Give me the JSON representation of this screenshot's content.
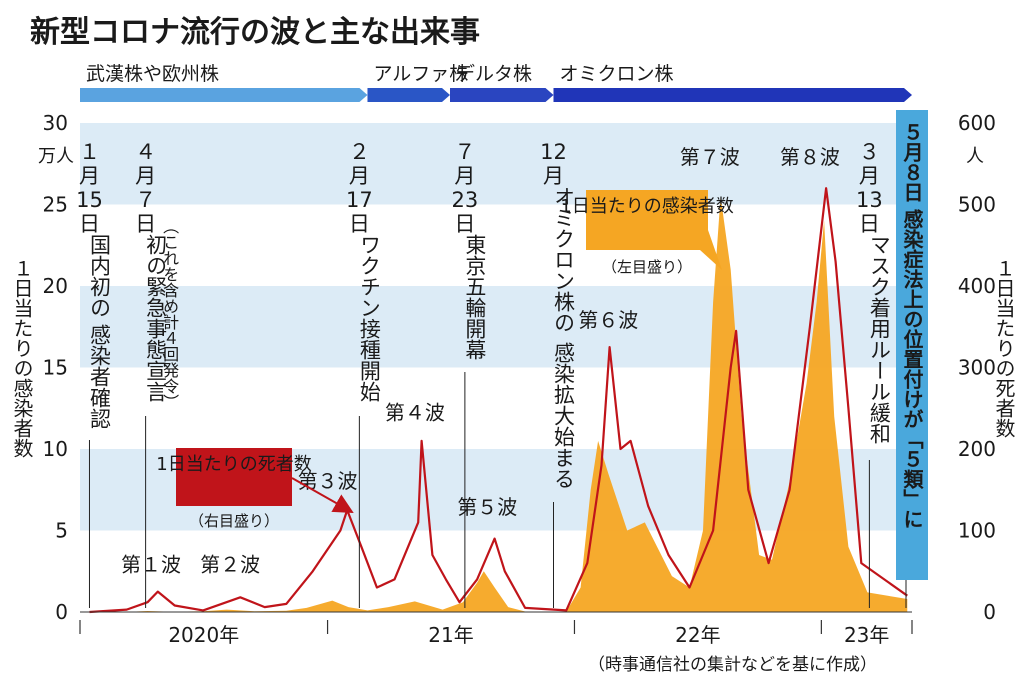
{
  "chart_data": {
    "type": "area",
    "title": "新型コロナ流行の波と主な出来事",
    "x_ticks": [
      "2020年",
      "21年",
      "22年",
      "23年"
    ],
    "left_axis": {
      "label": "１日当たりの感染者数",
      "unit": "万人",
      "range": [
        0,
        30
      ],
      "ticks": [
        0,
        5,
        10,
        15,
        20,
        25,
        30
      ]
    },
    "right_axis": {
      "label": "１日当たりの死者数",
      "unit": "人",
      "range": [
        0,
        600
      ],
      "ticks": [
        0,
        100,
        200,
        300,
        400,
        500,
        600
      ]
    },
    "grid_bands": true,
    "strains": [
      {
        "name": "武漢株や欧州株",
        "start": "2020-01",
        "end": "2021-03"
      },
      {
        "name": "アルファ株",
        "start": "2021-03",
        "end": "2021-07"
      },
      {
        "name": "デルタ株",
        "start": "2021-07",
        "end": "2021-12"
      },
      {
        "name": "オミクロン株",
        "start": "2021-12",
        "end": "2023-05"
      }
    ],
    "series": [
      {
        "name": "1日当たりの感染者数",
        "note": "（左目盛り）",
        "axis": "left",
        "color": "#f5a623",
        "points": [
          [
            "2020-01-15",
            0
          ],
          [
            "2020-03-15",
            0.02
          ],
          [
            "2020-04-10",
            0.06
          ],
          [
            "2020-05-15",
            0.01
          ],
          [
            "2020-07-01",
            0.05
          ],
          [
            "2020-08-05",
            0.15
          ],
          [
            "2020-09-15",
            0.05
          ],
          [
            "2020-11-01",
            0.08
          ],
          [
            "2020-12-01",
            0.25
          ],
          [
            "2021-01-08",
            0.7
          ],
          [
            "2021-02-01",
            0.3
          ],
          [
            "2021-03-01",
            0.1
          ],
          [
            "2021-04-01",
            0.3
          ],
          [
            "2021-05-10",
            0.65
          ],
          [
            "2021-06-20",
            0.15
          ],
          [
            "2021-07-20",
            0.6
          ],
          [
            "2021-08-10",
            1.8
          ],
          [
            "2021-08-20",
            2.5
          ],
          [
            "2021-09-05",
            1.5
          ],
          [
            "2021-09-25",
            0.3
          ],
          [
            "2021-10-20",
            0.03
          ],
          [
            "2021-12-20",
            0.03
          ],
          [
            "2022-01-10",
            1.5
          ],
          [
            "2022-01-25",
            7.5
          ],
          [
            "2022-02-05",
            10.5
          ],
          [
            "2022-02-20",
            8.5
          ],
          [
            "2022-03-20",
            5.0
          ],
          [
            "2022-04-15",
            5.5
          ],
          [
            "2022-05-25",
            2.2
          ],
          [
            "2022-06-20",
            1.5
          ],
          [
            "2022-07-10",
            5
          ],
          [
            "2022-07-25",
            19
          ],
          [
            "2022-08-05",
            25.5
          ],
          [
            "2022-08-20",
            21
          ],
          [
            "2022-09-05",
            12
          ],
          [
            "2022-10-01",
            3.5
          ],
          [
            "2022-10-20",
            3.2
          ],
          [
            "2022-11-15",
            8
          ],
          [
            "2022-12-10",
            14
          ],
          [
            "2022-12-25",
            19
          ],
          [
            "2023-01-05",
            24
          ],
          [
            "2023-01-20",
            12
          ],
          [
            "2023-02-10",
            4
          ],
          [
            "2023-03-10",
            1.2
          ],
          [
            "2023-05-08",
            0.8
          ]
        ]
      },
      {
        "name": "1日当たりの死者数",
        "note": "（右目盛り）",
        "axis": "right",
        "color": "#c0141a",
        "points": [
          [
            "2020-01-15",
            0
          ],
          [
            "2020-03-10",
            3
          ],
          [
            "2020-04-10",
            12
          ],
          [
            "2020-04-25",
            25
          ],
          [
            "2020-05-20",
            8
          ],
          [
            "2020-07-01",
            2
          ],
          [
            "2020-08-25",
            18
          ],
          [
            "2020-09-30",
            6
          ],
          [
            "2020-11-01",
            10
          ],
          [
            "2020-12-10",
            50
          ],
          [
            "2021-01-20",
            100
          ],
          [
            "2021-01-30",
            125
          ],
          [
            "2021-02-20",
            80
          ],
          [
            "2021-03-15",
            30
          ],
          [
            "2021-04-10",
            40
          ],
          [
            "2021-05-15",
            110
          ],
          [
            "2021-05-20",
            210
          ],
          [
            "2021-06-05",
            70
          ],
          [
            "2021-06-25",
            40
          ],
          [
            "2021-07-15",
            12
          ],
          [
            "2021-08-10",
            40
          ],
          [
            "2021-09-05",
            90
          ],
          [
            "2021-09-20",
            50
          ],
          [
            "2021-10-20",
            5
          ],
          [
            "2021-12-20",
            2
          ],
          [
            "2022-01-20",
            60
          ],
          [
            "2022-02-10",
            180
          ],
          [
            "2022-02-22",
            325
          ],
          [
            "2022-03-10",
            200
          ],
          [
            "2022-03-25",
            210
          ],
          [
            "2022-04-20",
            130
          ],
          [
            "2022-05-20",
            70
          ],
          [
            "2022-06-20",
            30
          ],
          [
            "2022-07-25",
            100
          ],
          [
            "2022-08-20",
            300
          ],
          [
            "2022-08-28",
            345
          ],
          [
            "2022-09-15",
            150
          ],
          [
            "2022-10-15",
            60
          ],
          [
            "2022-11-15",
            150
          ],
          [
            "2022-12-15",
            350
          ],
          [
            "2023-01-08",
            520
          ],
          [
            "2023-01-22",
            430
          ],
          [
            "2023-02-10",
            250
          ],
          [
            "2023-03-01",
            60
          ],
          [
            "2023-05-08",
            20
          ]
        ]
      }
    ],
    "wave_labels": [
      {
        "text": "第１波",
        "date": "2020-04-15",
        "value": 2.5
      },
      {
        "text": "第２波",
        "date": "2020-08-10",
        "value": 2.5
      },
      {
        "text": "第３波",
        "date": "2021-01-01",
        "value": 7.6
      },
      {
        "text": "第４波",
        "date": "2021-05-10",
        "value": 11.8
      },
      {
        "text": "第５波",
        "date": "2021-08-25",
        "value": 6.0
      },
      {
        "text": "第６波",
        "date": "2022-02-20",
        "value": 17.5
      },
      {
        "text": "第７波",
        "date": "2022-07-20",
        "value": 27.5
      },
      {
        "text": "第８波",
        "date": "2022-12-15",
        "value": 27.5
      }
    ],
    "events": [
      {
        "date": "2020-01-15",
        "lines": [
          "１",
          "月",
          "15",
          "日",
          "国内初の",
          "感染者確認"
        ]
      },
      {
        "date": "2020-04-07",
        "lines": [
          "４",
          "月",
          "７",
          "日",
          "初の緊急事態宣言"
        ],
        "sub": "（これを含め計４回発令）"
      },
      {
        "date": "2021-02-17",
        "lines": [
          "２",
          "月",
          "17",
          "日",
          "ワクチン接種開始"
        ]
      },
      {
        "date": "2021-07-23",
        "lines": [
          "７",
          "月",
          "23",
          "日",
          "東京五輪開幕"
        ]
      },
      {
        "date": "2021-12-01",
        "lines": [
          "12",
          "月",
          "オミクロン株の",
          "感染拡大始まる"
        ]
      },
      {
        "date": "2023-03-13",
        "lines": [
          "３",
          "月",
          "13",
          "日",
          "マスク着用ルール緩和"
        ]
      }
    ],
    "final_event": "５月８日 感染症法上の位置付けが「５類」に",
    "source_note": "（時事通信社の集計などを基に作成）"
  }
}
